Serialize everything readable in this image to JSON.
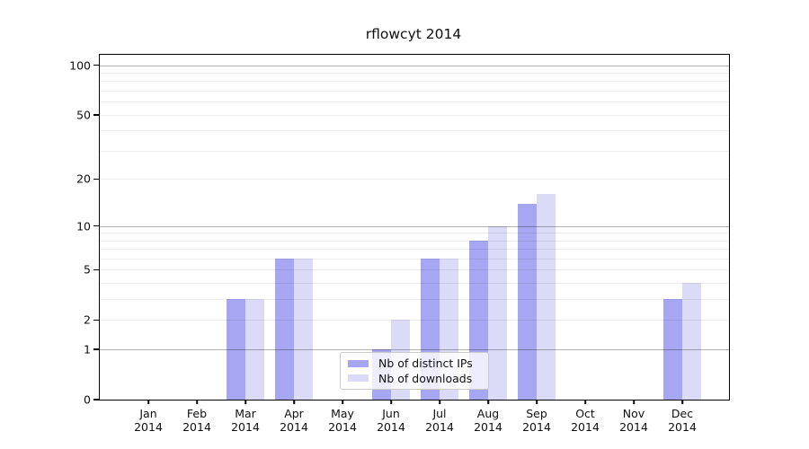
{
  "chart_data": {
    "type": "bar",
    "title": "rflowcyt 2014",
    "yscale": "log1p",
    "ylim": [
      0,
      110
    ],
    "yticks": [
      0,
      1,
      2,
      5,
      10,
      20,
      50,
      100
    ],
    "major_gridlines": [
      1,
      10,
      100
    ],
    "minor_gridlines": [
      3,
      4,
      6,
      7,
      8,
      9,
      30,
      40,
      60,
      70,
      80,
      90
    ],
    "grid": true,
    "categories": [
      "Jan",
      "Feb",
      "Mar",
      "Apr",
      "May",
      "Jun",
      "Jul",
      "Aug",
      "Sep",
      "Oct",
      "Nov",
      "Dec"
    ],
    "year": "2014",
    "series": [
      {
        "name": "Nb of distinct IPs",
        "color": "#a6a6f2",
        "values": [
          0,
          0,
          3,
          6,
          0,
          1,
          6,
          8,
          14,
          0,
          0,
          3
        ]
      },
      {
        "name": "Nb of downloads",
        "color": "#dbdbf8",
        "values": [
          0,
          0,
          3,
          6,
          0,
          2,
          6,
          10,
          16,
          0,
          0,
          4
        ]
      }
    ],
    "legend_position": "bottom-center",
    "background": "#ffffff"
  }
}
